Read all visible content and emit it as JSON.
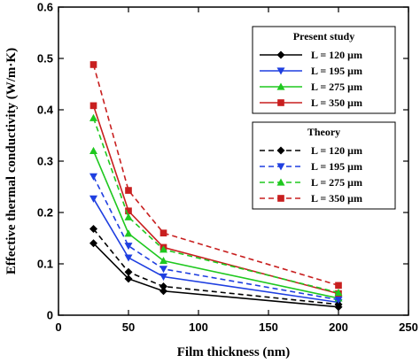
{
  "chart_data": {
    "type": "line",
    "xlabel": "Film thickness (nm)",
    "ylabel": "Effective thermal conductivity (W/m·K)",
    "xlim": [
      0,
      250
    ],
    "ylim": [
      0,
      0.6
    ],
    "xticks": [
      "0",
      "50",
      "100",
      "150",
      "200",
      "250"
    ],
    "yticks": [
      "0",
      "0.1",
      "0.2",
      "0.3",
      "0.4",
      "0.5",
      "0.6"
    ],
    "x": [
      25,
      50,
      75,
      200
    ],
    "legend_placement": "right",
    "groups": [
      {
        "title": "Present study",
        "line_style": "solid",
        "series": [
          {
            "name": "L = 120 μm",
            "color": "#000000",
            "marker": "diamond",
            "values": [
              0.14,
              0.071,
              0.047,
              0.016
            ]
          },
          {
            "name": "L = 195 μm",
            "color": "#1f3fe0",
            "marker": "triangle-down",
            "values": [
              0.227,
              0.112,
              0.075,
              0.025
            ]
          },
          {
            "name": "L = 275 μm",
            "color": "#1fc81f",
            "marker": "triangle-up",
            "values": [
              0.32,
              0.159,
              0.106,
              0.033
            ]
          },
          {
            "name": "L = 350 μm",
            "color": "#c81f1f",
            "marker": "square",
            "values": [
              0.408,
              0.203,
              0.132,
              0.042
            ]
          }
        ]
      },
      {
        "title": "Theory",
        "line_style": "dashed",
        "series": [
          {
            "name": "L = 120 μm",
            "color": "#000000",
            "marker": "diamond",
            "values": [
              0.168,
              0.084,
              0.056,
              0.021
            ]
          },
          {
            "name": "L = 195 μm",
            "color": "#1f3fe0",
            "marker": "triangle-down",
            "values": [
              0.27,
              0.135,
              0.09,
              0.03
            ]
          },
          {
            "name": "L = 275 μm",
            "color": "#1fc81f",
            "marker": "triangle-up",
            "values": [
              0.384,
              0.191,
              0.128,
              0.044
            ]
          },
          {
            "name": "L = 350 μm",
            "color": "#c81f1f",
            "marker": "square",
            "values": [
              0.488,
              0.243,
              0.16,
              0.058
            ]
          }
        ]
      }
    ]
  }
}
